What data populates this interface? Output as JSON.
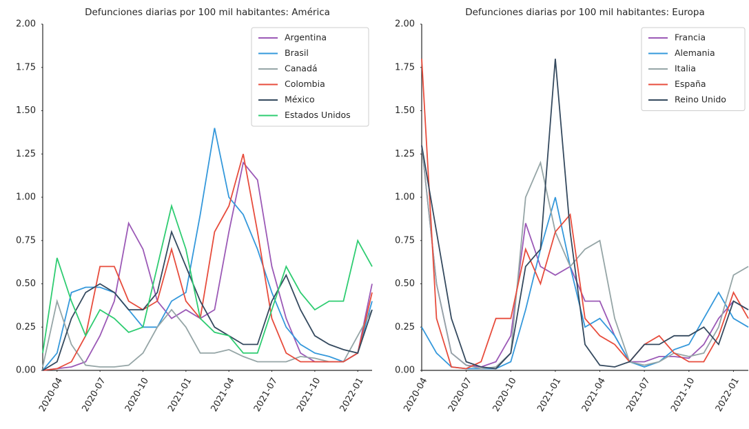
{
  "chart_data": [
    {
      "type": "line",
      "title": "Defunciones diarias por 100 mil habitantes: América",
      "x": [
        "2020-03",
        "2020-04",
        "2020-05",
        "2020-06",
        "2020-07",
        "2020-08",
        "2020-09",
        "2020-10",
        "2020-11",
        "2020-12",
        "2021-01",
        "2021-02",
        "2021-03",
        "2021-04",
        "2021-05",
        "2021-06",
        "2021-07",
        "2021-08",
        "2021-09",
        "2021-10",
        "2021-11",
        "2021-12",
        "2022-01",
        "2022-02"
      ],
      "xlim": [
        "2020-03",
        "2022-02"
      ],
      "xticks": [
        "2020-04",
        "2020-07",
        "2020-10",
        "2021-01",
        "2021-04",
        "2021-07",
        "2021-10",
        "2022-01"
      ],
      "ylim": [
        0,
        2
      ],
      "yticks": [
        {
          "value": 0,
          "label": "0.00"
        },
        {
          "value": 0.25,
          "label": "0.25"
        },
        {
          "value": 0.5,
          "label": "0.50"
        },
        {
          "value": 0.75,
          "label": "0.75"
        },
        {
          "value": 1,
          "label": "1.00"
        },
        {
          "value": 1.25,
          "label": "1.25"
        },
        {
          "value": 1.5,
          "label": "1.50"
        },
        {
          "value": 1.75,
          "label": "1.75"
        },
        {
          "value": 2,
          "label": "2.00"
        }
      ],
      "grid": false,
      "legend": "upper right",
      "series": [
        {
          "name": "Argentina",
          "color": "#9b59b6",
          "values": [
            0,
            0.01,
            0.02,
            0.05,
            0.2,
            0.4,
            0.85,
            0.7,
            0.4,
            0.3,
            0.35,
            0.3,
            0.35,
            0.8,
            1.2,
            1.1,
            0.6,
            0.3,
            0.1,
            0.05,
            0.05,
            0.05,
            0.1,
            0.5
          ]
        },
        {
          "name": "Brasil",
          "color": "#3498db",
          "values": [
            0,
            0.1,
            0.45,
            0.48,
            0.48,
            0.45,
            0.35,
            0.25,
            0.25,
            0.4,
            0.45,
            0.9,
            1.4,
            1.0,
            0.9,
            0.7,
            0.45,
            0.25,
            0.15,
            0.1,
            0.08,
            0.05,
            0.1,
            0.4
          ]
        },
        {
          "name": "Canadá",
          "color": "#95a5a6",
          "values": [
            0.02,
            0.4,
            0.15,
            0.03,
            0.02,
            0.02,
            0.03,
            0.1,
            0.25,
            0.35,
            0.25,
            0.1,
            0.1,
            0.12,
            0.08,
            0.05,
            0.05,
            0.05,
            0.08,
            0.07,
            0.05,
            0.05,
            0.2,
            0.35
          ]
        },
        {
          "name": "Colombia",
          "color": "#e74c3c",
          "values": [
            0,
            0.01,
            0.05,
            0.2,
            0.6,
            0.6,
            0.4,
            0.35,
            0.4,
            0.7,
            0.4,
            0.3,
            0.8,
            0.95,
            1.25,
            0.8,
            0.3,
            0.1,
            0.05,
            0.05,
            0.05,
            0.05,
            0.1,
            0.45
          ]
        },
        {
          "name": "México",
          "color": "#34495e",
          "values": [
            0,
            0.05,
            0.3,
            0.45,
            0.5,
            0.45,
            0.35,
            0.35,
            0.45,
            0.8,
            0.6,
            0.4,
            0.25,
            0.2,
            0.15,
            0.15,
            0.4,
            0.55,
            0.35,
            0.2,
            0.15,
            0.12,
            0.1,
            0.35
          ]
        },
        {
          "name": "Estados Unidos",
          "color": "#2ecc71",
          "values": [
            0.1,
            0.65,
            0.4,
            0.2,
            0.35,
            0.3,
            0.22,
            0.25,
            0.6,
            0.95,
            0.7,
            0.3,
            0.22,
            0.2,
            0.1,
            0.1,
            0.35,
            0.6,
            0.45,
            0.35,
            0.4,
            0.4,
            0.75,
            0.6
          ]
        }
      ]
    },
    {
      "type": "line",
      "title": "Defunciones diarias por 100 mil habitantes: Europa",
      "x": [
        "2020-04",
        "2020-05",
        "2020-06",
        "2020-07",
        "2020-08",
        "2020-09",
        "2020-10",
        "2020-11",
        "2020-12",
        "2021-01",
        "2021-02",
        "2021-03",
        "2021-04",
        "2021-05",
        "2021-06",
        "2021-07",
        "2021-08",
        "2021-09",
        "2021-10",
        "2021-11",
        "2021-12",
        "2022-01",
        "2022-02"
      ],
      "xlim": [
        "2020-04",
        "2022-02"
      ],
      "xticks": [
        "2020-04",
        "2020-07",
        "2020-10",
        "2021-01",
        "2021-04",
        "2021-07",
        "2021-10",
        "2022-01"
      ],
      "ylim": [
        0,
        2
      ],
      "yticks": [
        {
          "value": 0,
          "label": "0.00"
        },
        {
          "value": 0.25,
          "label": "0.25"
        },
        {
          "value": 0.5,
          "label": "0.50"
        },
        {
          "value": 0.75,
          "label": "0.75"
        },
        {
          "value": 1,
          "label": "1.00"
        },
        {
          "value": 1.25,
          "label": "1.25"
        },
        {
          "value": 1.5,
          "label": "1.50"
        },
        {
          "value": 1.75,
          "label": "1.75"
        },
        {
          "value": 2,
          "label": "2.00"
        }
      ],
      "grid": false,
      "legend": "upper right",
      "series": [
        {
          "name": "Francia",
          "color": "#9b59b6",
          "values": [
            1.3,
            0.5,
            0.1,
            0.03,
            0.02,
            0.05,
            0.2,
            0.85,
            0.6,
            0.55,
            0.6,
            0.4,
            0.4,
            0.2,
            0.05,
            0.05,
            0.08,
            0.08,
            0.07,
            0.15,
            0.3,
            0.4,
            0.35
          ]
        },
        {
          "name": "Alemania",
          "color": "#3498db",
          "values": [
            0.25,
            0.1,
            0.02,
            0.01,
            0.01,
            0.01,
            0.05,
            0.35,
            0.7,
            1.0,
            0.6,
            0.25,
            0.3,
            0.2,
            0.05,
            0.02,
            0.05,
            0.12,
            0.15,
            0.3,
            0.45,
            0.3,
            0.25
          ]
        },
        {
          "name": "Italia",
          "color": "#95a5a6",
          "values": [
            1.3,
            0.5,
            0.1,
            0.03,
            0.01,
            0.02,
            0.1,
            1.0,
            1.2,
            0.8,
            0.6,
            0.7,
            0.75,
            0.3,
            0.05,
            0.03,
            0.05,
            0.1,
            0.08,
            0.1,
            0.25,
            0.55,
            0.6
          ]
        },
        {
          "name": "España",
          "color": "#e74c3c",
          "values": [
            1.8,
            0.3,
            0.02,
            0.01,
            0.05,
            0.3,
            0.3,
            0.7,
            0.5,
            0.8,
            0.9,
            0.3,
            0.2,
            0.15,
            0.05,
            0.15,
            0.2,
            0.1,
            0.05,
            0.05,
            0.2,
            0.45,
            0.3
          ]
        },
        {
          "name": "Reino Unido",
          "color": "#34495e",
          "values": [
            1.3,
            0.8,
            0.3,
            0.05,
            0.02,
            0.01,
            0.1,
            0.6,
            0.7,
            1.8,
            0.8,
            0.15,
            0.03,
            0.02,
            0.05,
            0.15,
            0.15,
            0.2,
            0.2,
            0.25,
            0.15,
            0.4,
            0.35
          ]
        }
      ]
    }
  ]
}
